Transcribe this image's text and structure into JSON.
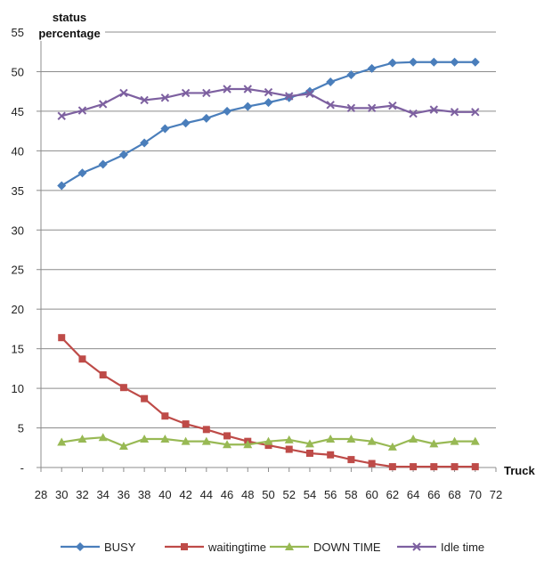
{
  "chart_data": {
    "type": "line",
    "ylabel_line1": "status",
    "ylabel_line2": "percentage",
    "xlabel": "Truck",
    "xlim": [
      28,
      72
    ],
    "ylim": [
      0,
      55
    ],
    "x_ticks": [
      28,
      30,
      32,
      34,
      36,
      38,
      40,
      42,
      44,
      46,
      48,
      50,
      52,
      54,
      56,
      58,
      60,
      62,
      64,
      66,
      68,
      70,
      72
    ],
    "y_ticks": [
      0,
      5,
      10,
      15,
      20,
      25,
      30,
      35,
      40,
      45,
      50,
      55
    ],
    "y_tick_labels": [
      "-",
      "5",
      "10",
      "15",
      "20",
      "25",
      "30",
      "35",
      "40",
      "45",
      "50",
      "55"
    ],
    "grid": "horizontal",
    "legend_position": "bottom",
    "x": [
      30,
      32,
      34,
      36,
      38,
      40,
      42,
      44,
      46,
      48,
      50,
      52,
      54,
      56,
      58,
      60,
      62,
      64,
      66,
      68,
      70
    ],
    "series": [
      {
        "name": "BUSY",
        "color": "#4a7ebb",
        "marker": "diamond",
        "values": [
          35.6,
          37.2,
          38.3,
          39.5,
          41.0,
          42.8,
          43.5,
          44.1,
          45.0,
          45.6,
          46.1,
          46.7,
          47.5,
          48.7,
          49.6,
          50.4,
          51.1,
          51.2,
          51.2,
          51.2,
          51.2
        ]
      },
      {
        "name": "waitingtime",
        "color": "#be4b48",
        "marker": "square",
        "values": [
          16.4,
          13.7,
          11.7,
          10.1,
          8.7,
          6.5,
          5.5,
          4.8,
          4.0,
          3.3,
          2.8,
          2.3,
          1.8,
          1.6,
          1.0,
          0.5,
          0.1,
          0.1,
          0.1,
          0.1,
          0.1
        ]
      },
      {
        "name": "DOWN TIME",
        "color": "#98b954",
        "marker": "triangle",
        "values": [
          3.2,
          3.6,
          3.8,
          2.7,
          3.6,
          3.6,
          3.3,
          3.3,
          2.9,
          2.9,
          3.3,
          3.5,
          3.0,
          3.6,
          3.6,
          3.3,
          2.6,
          3.6,
          3.0,
          3.3,
          3.3
        ]
      },
      {
        "name": "Idle time",
        "color": "#7d60a0",
        "marker": "x",
        "values": [
          44.4,
          45.1,
          45.9,
          47.3,
          46.4,
          46.7,
          47.3,
          47.3,
          47.8,
          47.8,
          47.4,
          46.9,
          47.2,
          45.8,
          45.4,
          45.4,
          45.7,
          44.7,
          45.2,
          44.9,
          44.9
        ]
      }
    ]
  }
}
